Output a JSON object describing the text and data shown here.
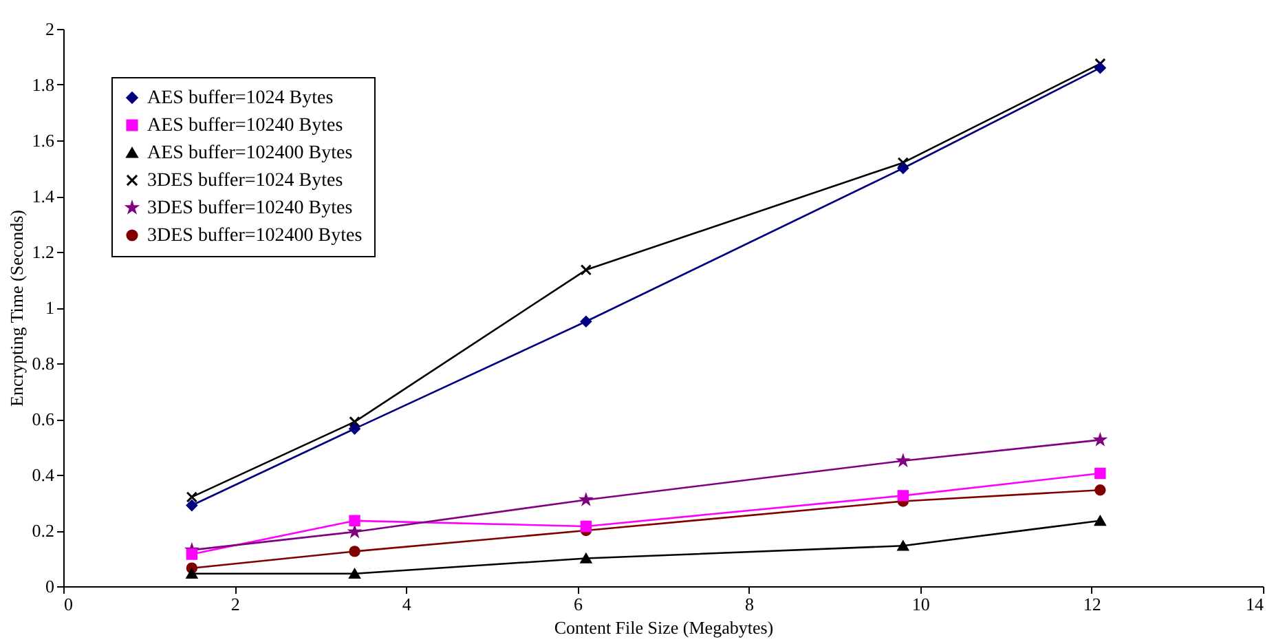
{
  "chart_data": {
    "type": "line",
    "xlabel": "Content File Size (Megabytes)",
    "ylabel": "Encrypting Time (Seconds)",
    "x": [
      1.5,
      3.4,
      6.1,
      9.8,
      12.1
    ],
    "xlim": [
      0,
      14
    ],
    "xticks": [
      0,
      2,
      4,
      6,
      8,
      10,
      12,
      14
    ],
    "ylim": [
      0,
      2
    ],
    "yticks": [
      0,
      0.2,
      0.4,
      0.6,
      0.8,
      1,
      1.2,
      1.4,
      1.6,
      1.8,
      2
    ],
    "grid": false,
    "legend": "top left",
    "series": [
      {
        "name": "AES buffer=1024 Bytes",
        "color": "#000080",
        "marker": "diamond",
        "values": [
          0.29,
          0.565,
          0.95,
          1.5,
          1.86
        ]
      },
      {
        "name": "AES buffer=10240 Bytes",
        "color": "#ff00ff",
        "marker": "square",
        "values": [
          0.115,
          0.235,
          0.215,
          0.325,
          0.405
        ]
      },
      {
        "name": "AES buffer=102400 Bytes",
        "color": "#000000",
        "marker": "triangle",
        "values": [
          0.045,
          0.045,
          0.1,
          0.145,
          0.235
        ]
      },
      {
        "name": "3DES buffer=1024 Bytes",
        "color": "#000000",
        "marker": "cross",
        "values": [
          0.32,
          0.59,
          1.135,
          1.52,
          1.875
        ]
      },
      {
        "name": "3DES buffer=10240 Bytes",
        "color": "#800080",
        "marker": "star",
        "values": [
          0.13,
          0.195,
          0.31,
          0.45,
          0.525
        ]
      },
      {
        "name": "3DES buffer=102400 Bytes",
        "color": "#800000",
        "marker": "circle",
        "values": [
          0.065,
          0.125,
          0.2,
          0.305,
          0.345
        ]
      }
    ]
  }
}
